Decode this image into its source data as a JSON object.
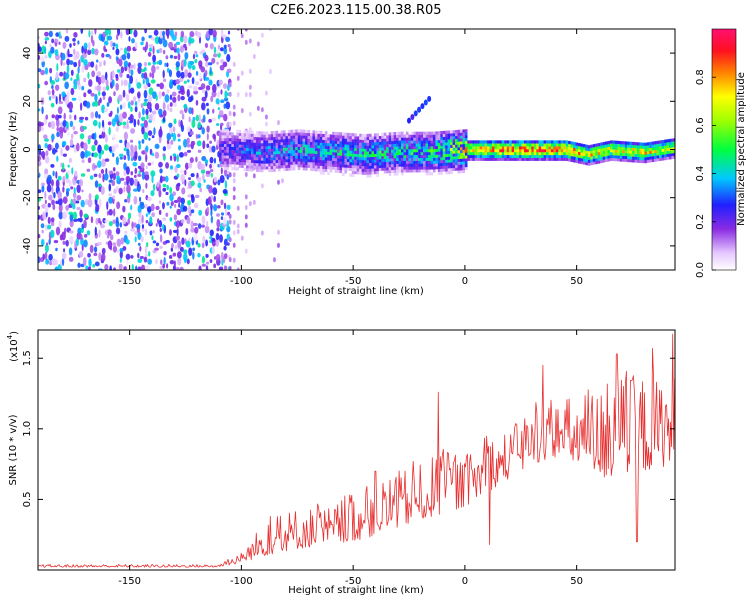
{
  "title": "C2E6.2023.115.00.38.R05",
  "chart_data": [
    {
      "type": "heatmap",
      "xlabel": "Height of straight line (km)",
      "ylabel": "Frequency (Hz)",
      "xlim": [
        -191,
        94
      ],
      "ylim": [
        -50,
        50
      ],
      "xticks": [
        -150,
        -100,
        -50,
        0,
        50
      ],
      "xtick_labels": [
        "-150",
        "-100",
        "-50",
        "0",
        "50"
      ],
      "yticks": [
        -40,
        -20,
        0,
        20,
        40
      ],
      "ytick_labels": [
        "-40",
        "-20",
        "0",
        "20",
        "40"
      ],
      "colorbar": {
        "label": "Normalized spectral amplitude",
        "range": [
          0,
          1
        ],
        "ticks": [
          0.0,
          0.2,
          0.4,
          0.6,
          0.8
        ],
        "tick_labels": [
          "0.0",
          "0.2",
          "0.4",
          "0.6",
          "0.8"
        ],
        "colormap": "rainbow (white-violet-blue-cyan-green-yellow-red-magenta)"
      },
      "ridge": {
        "description": "spectral ridge near 0 Hz",
        "points": [
          {
            "x": -105,
            "f": 0,
            "amp": 0.3
          },
          {
            "x": -90,
            "f": -1,
            "amp": 0.4
          },
          {
            "x": -75,
            "f": 0,
            "amp": 0.45
          },
          {
            "x": -60,
            "f": -1,
            "amp": 0.45
          },
          {
            "x": -45,
            "f": -2,
            "amp": 0.5
          },
          {
            "x": -30,
            "f": -1,
            "amp": 0.5
          },
          {
            "x": -15,
            "f": -1,
            "amp": 0.55
          },
          {
            "x": 0,
            "f": 0,
            "amp": 0.8
          },
          {
            "x": 15,
            "f": 0,
            "amp": 0.9
          },
          {
            "x": 30,
            "f": 0,
            "amp": 0.92
          },
          {
            "x": 45,
            "f": 0,
            "amp": 0.9
          },
          {
            "x": 55,
            "f": -2,
            "amp": 0.8
          },
          {
            "x": 65,
            "f": 0,
            "amp": 0.75
          },
          {
            "x": 80,
            "f": -1,
            "amp": 0.8
          },
          {
            "x": 94,
            "f": 1,
            "amp": 0.7
          }
        ],
        "side_feature": {
          "x_range": [
            -25,
            -15
          ],
          "f_range": [
            12,
            22
          ]
        }
      },
      "noise_region": {
        "x_range": [
          -191,
          -105
        ],
        "amp": [
          0.2,
          0.45
        ]
      }
    },
    {
      "type": "line",
      "xlabel": "Height of straight line (km)",
      "ylabel": "SNR (10 * v/v)",
      "yscale_label": "(x10",
      "yscale_exp": "4",
      "series_color": "#e83030",
      "xlim": [
        -191,
        94
      ],
      "ylim": [
        0,
        1.7
      ],
      "xticks": [
        -150,
        -100,
        -50,
        0,
        50
      ],
      "xtick_labels": [
        "-150",
        "-100",
        "-50",
        "0",
        "50"
      ],
      "yticks": [
        0.5,
        1.0,
        1.5
      ],
      "ytick_labels": [
        "0.5",
        "1.0",
        "1.5"
      ],
      "envelope": [
        {
          "x": -191,
          "base": 0.02,
          "peak": 0.04
        },
        {
          "x": -110,
          "base": 0.02,
          "peak": 0.04
        },
        {
          "x": -100,
          "base": 0.05,
          "peak": 0.12
        },
        {
          "x": -90,
          "base": 0.1,
          "peak": 0.35
        },
        {
          "x": -75,
          "base": 0.15,
          "peak": 0.45
        },
        {
          "x": -60,
          "base": 0.18,
          "peak": 0.45
        },
        {
          "x": -45,
          "base": 0.22,
          "peak": 0.6
        },
        {
          "x": -30,
          "base": 0.3,
          "peak": 0.7
        },
        {
          "x": -20,
          "base": 0.35,
          "peak": 0.75
        },
        {
          "x": -10,
          "base": 0.4,
          "peak": 0.85
        },
        {
          "x": 0,
          "base": 0.45,
          "peak": 0.8
        },
        {
          "x": 10,
          "base": 0.55,
          "peak": 0.95
        },
        {
          "x": 20,
          "base": 0.65,
          "peak": 1.0
        },
        {
          "x": 30,
          "base": 0.75,
          "peak": 1.15
        },
        {
          "x": 40,
          "base": 0.8,
          "peak": 1.2
        },
        {
          "x": 50,
          "base": 0.75,
          "peak": 1.25
        },
        {
          "x": 60,
          "base": 0.65,
          "peak": 1.3
        },
        {
          "x": 70,
          "base": 0.65,
          "peak": 1.35
        },
        {
          "x": 80,
          "base": 0.7,
          "peak": 1.4
        },
        {
          "x": 94,
          "base": 0.75,
          "peak": 1.4
        }
      ],
      "spikes": [
        {
          "x": -71,
          "y": 0.35
        },
        {
          "x": -40,
          "y": 0.7
        },
        {
          "x": -12,
          "y": 1.26
        },
        {
          "x": 11,
          "y": 0.18
        },
        {
          "x": 35,
          "y": 1.45
        },
        {
          "x": 68,
          "y": 1.53
        },
        {
          "x": 77,
          "y": 0.2
        },
        {
          "x": 84,
          "y": 1.57
        },
        {
          "x": 93,
          "y": 1.67
        }
      ]
    }
  ]
}
